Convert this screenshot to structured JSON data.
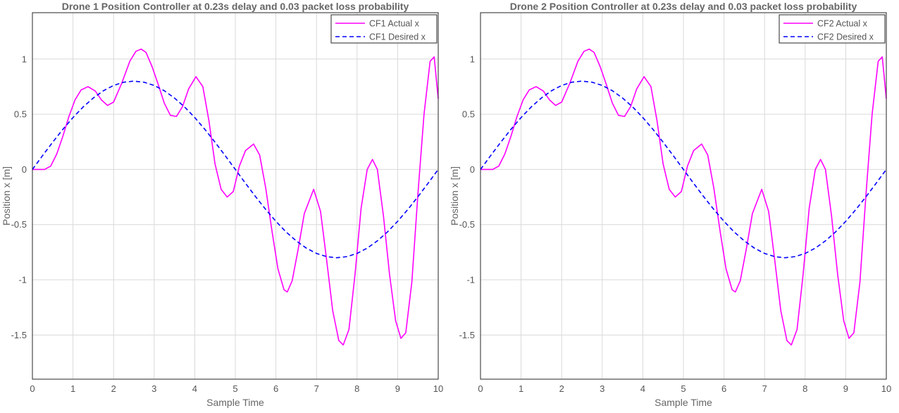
{
  "chart_data": [
    {
      "type": "line",
      "title": "Drone 1 Position Controller at 0.23s delay and 0.03 packet loss probability",
      "xlabel": "Sample Time",
      "ylabel": "Position x [m]",
      "xlim": [
        0,
        10
      ],
      "ylim": [
        -1.9,
        1.42
      ],
      "xticks": [
        "0",
        "1",
        "2",
        "3",
        "4",
        "5",
        "6",
        "7",
        "8",
        "9",
        "10"
      ],
      "yticks": [
        "-1.5",
        "-1",
        "-0.5",
        "0",
        "0.5",
        "1"
      ],
      "grid": true,
      "legend_position": "top-right",
      "series": [
        {
          "name": "CF1 Actual x",
          "color": "#ff00ff",
          "style": "solid",
          "x": [
            0,
            0.15,
            0.3,
            0.45,
            0.6,
            0.75,
            0.9,
            1.05,
            1.2,
            1.37,
            1.55,
            1.7,
            1.85,
            2.0,
            2.2,
            2.4,
            2.55,
            2.68,
            2.8,
            2.95,
            3.1,
            3.25,
            3.4,
            3.55,
            3.7,
            3.85,
            4.03,
            4.2,
            4.35,
            4.5,
            4.65,
            4.8,
            4.95,
            5.1,
            5.25,
            5.45,
            5.6,
            5.75,
            5.9,
            6.05,
            6.2,
            6.28,
            6.4,
            6.55,
            6.7,
            6.93,
            7.1,
            7.25,
            7.4,
            7.55,
            7.66,
            7.8,
            7.95,
            8.1,
            8.25,
            8.38,
            8.5,
            8.65,
            8.8,
            8.95,
            9.08,
            9.2,
            9.35,
            9.5,
            9.65,
            9.8,
            9.9,
            10.0
          ],
          "y": [
            0,
            0,
            0,
            0.03,
            0.14,
            0.3,
            0.48,
            0.63,
            0.72,
            0.75,
            0.71,
            0.63,
            0.58,
            0.61,
            0.78,
            0.98,
            1.07,
            1.09,
            1.06,
            0.93,
            0.77,
            0.6,
            0.49,
            0.48,
            0.57,
            0.73,
            0.84,
            0.75,
            0.44,
            0.05,
            -0.18,
            -0.25,
            -0.2,
            0.03,
            0.17,
            0.23,
            0.13,
            -0.17,
            -0.55,
            -0.9,
            -1.09,
            -1.11,
            -1.01,
            -0.72,
            -0.4,
            -0.18,
            -0.38,
            -0.82,
            -1.28,
            -1.55,
            -1.59,
            -1.45,
            -0.95,
            -0.35,
            0.0,
            0.09,
            0.0,
            -0.42,
            -0.95,
            -1.37,
            -1.53,
            -1.48,
            -1.02,
            -0.22,
            0.5,
            0.98,
            1.02,
            0.64
          ]
        },
        {
          "name": "CF1 Desired x",
          "color": "#0000ff",
          "style": "dashed",
          "x": [
            0,
            0.25,
            0.5,
            0.75,
            1.0,
            1.25,
            1.5,
            1.75,
            2.0,
            2.25,
            2.5,
            2.75,
            3.0,
            3.25,
            3.5,
            3.75,
            4.0,
            4.25,
            4.5,
            4.75,
            5.0,
            5.25,
            5.5,
            5.75,
            6.0,
            6.25,
            6.5,
            6.75,
            7.0,
            7.25,
            7.5,
            7.75,
            8.0,
            8.25,
            8.5,
            8.75,
            9.0,
            9.25,
            9.5,
            9.75,
            10.0
          ],
          "y": [
            0,
            0.125,
            0.247,
            0.363,
            0.47,
            0.566,
            0.647,
            0.713,
            0.761,
            0.79,
            0.8,
            0.79,
            0.761,
            0.713,
            0.647,
            0.566,
            0.47,
            0.363,
            0.247,
            0.125,
            0,
            -0.125,
            -0.247,
            -0.363,
            -0.47,
            -0.566,
            -0.647,
            -0.713,
            -0.761,
            -0.79,
            -0.8,
            -0.79,
            -0.761,
            -0.713,
            -0.647,
            -0.566,
            -0.47,
            -0.363,
            -0.247,
            -0.125,
            0
          ]
        }
      ]
    },
    {
      "type": "line",
      "title": "Drone 2 Position Controller at 0.23s delay and 0.03 packet loss probability",
      "xlabel": "Sample Time",
      "ylabel": "Position x [m]",
      "xlim": [
        0,
        10
      ],
      "ylim": [
        -1.9,
        1.42
      ],
      "xticks": [
        "0",
        "1",
        "2",
        "3",
        "4",
        "5",
        "6",
        "7",
        "8",
        "9",
        "10"
      ],
      "yticks": [
        "-1.5",
        "-1",
        "-0.5",
        "0",
        "0.5",
        "1"
      ],
      "grid": true,
      "legend_position": "top-right",
      "series": [
        {
          "name": "CF2 Actual x",
          "color": "#ff00ff",
          "style": "solid",
          "x": [
            0,
            0.15,
            0.3,
            0.45,
            0.6,
            0.75,
            0.9,
            1.05,
            1.2,
            1.37,
            1.55,
            1.7,
            1.85,
            2.0,
            2.2,
            2.4,
            2.55,
            2.68,
            2.8,
            2.95,
            3.1,
            3.25,
            3.4,
            3.55,
            3.7,
            3.85,
            4.03,
            4.2,
            4.35,
            4.5,
            4.65,
            4.8,
            4.95,
            5.1,
            5.25,
            5.45,
            5.6,
            5.75,
            5.9,
            6.05,
            6.2,
            6.28,
            6.4,
            6.55,
            6.7,
            6.93,
            7.1,
            7.25,
            7.4,
            7.55,
            7.66,
            7.8,
            7.95,
            8.1,
            8.25,
            8.38,
            8.5,
            8.65,
            8.8,
            8.95,
            9.08,
            9.2,
            9.35,
            9.5,
            9.65,
            9.8,
            9.9,
            10.0
          ],
          "y": [
            0,
            0,
            0,
            0.03,
            0.14,
            0.3,
            0.48,
            0.63,
            0.72,
            0.75,
            0.71,
            0.63,
            0.58,
            0.61,
            0.78,
            0.98,
            1.07,
            1.09,
            1.06,
            0.93,
            0.77,
            0.6,
            0.49,
            0.48,
            0.57,
            0.73,
            0.84,
            0.75,
            0.44,
            0.05,
            -0.18,
            -0.25,
            -0.2,
            0.03,
            0.17,
            0.23,
            0.13,
            -0.17,
            -0.55,
            -0.9,
            -1.09,
            -1.11,
            -1.01,
            -0.72,
            -0.4,
            -0.18,
            -0.38,
            -0.82,
            -1.28,
            -1.55,
            -1.59,
            -1.45,
            -0.95,
            -0.35,
            0.0,
            0.09,
            0.0,
            -0.42,
            -0.95,
            -1.37,
            -1.53,
            -1.48,
            -1.02,
            -0.22,
            0.5,
            0.98,
            1.02,
            0.64
          ]
        },
        {
          "name": "CF2 Desired x",
          "color": "#0000ff",
          "style": "dashed",
          "x": [
            0,
            0.25,
            0.5,
            0.75,
            1.0,
            1.25,
            1.5,
            1.75,
            2.0,
            2.25,
            2.5,
            2.75,
            3.0,
            3.25,
            3.5,
            3.75,
            4.0,
            4.25,
            4.5,
            4.75,
            5.0,
            5.25,
            5.5,
            5.75,
            6.0,
            6.25,
            6.5,
            6.75,
            7.0,
            7.25,
            7.5,
            7.75,
            8.0,
            8.25,
            8.5,
            8.75,
            9.0,
            9.25,
            9.5,
            9.75,
            10.0
          ],
          "y": [
            0,
            0.125,
            0.247,
            0.363,
            0.47,
            0.566,
            0.647,
            0.713,
            0.761,
            0.79,
            0.8,
            0.79,
            0.761,
            0.713,
            0.647,
            0.566,
            0.47,
            0.363,
            0.247,
            0.125,
            0,
            -0.125,
            -0.247,
            -0.363,
            -0.47,
            -0.566,
            -0.647,
            -0.713,
            -0.761,
            -0.79,
            -0.8,
            -0.79,
            -0.761,
            -0.713,
            -0.647,
            -0.566,
            -0.47,
            -0.363,
            -0.247,
            -0.125,
            0
          ]
        }
      ]
    }
  ]
}
